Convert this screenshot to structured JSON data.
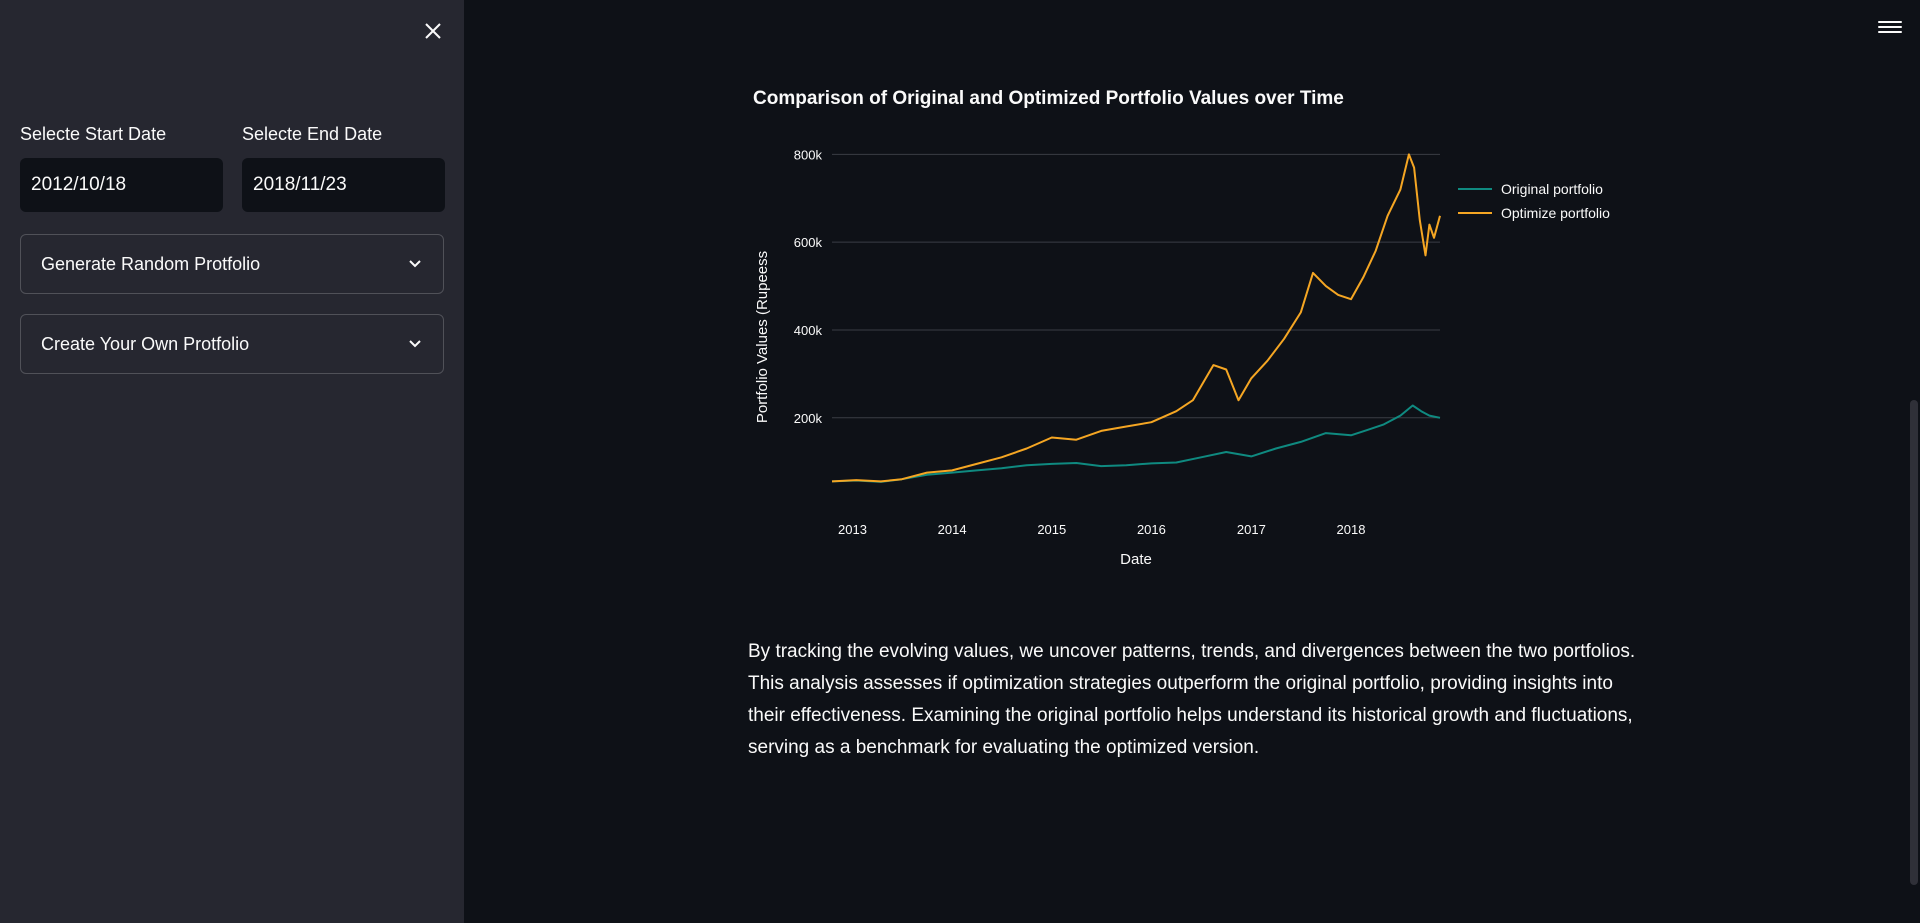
{
  "sidebar": {
    "start_date_label": "Selecte Start Date",
    "start_date_value": "2012/10/18",
    "end_date_label": "Selecte End Date",
    "end_date_value": "2018/11/23",
    "expanders": [
      {
        "label": "Generate Random Protfolio"
      },
      {
        "label": "Create Your Own Protfolio"
      }
    ]
  },
  "main": {
    "chart_title": "Comparison of Original and Optimized Portfolio Values over Time",
    "description": "By tracking the evolving values, we uncover patterns, trends, and divergences between the two portfolios. This analysis assesses if optimization strategies outperform the original portfolio, providing insights into their effectiveness. Examining the original portfolio helps understand its historical growth and fluctuations, serving as a benchmark for evaluating the optimized version."
  },
  "colors": {
    "original": "#0f8a80",
    "optimized": "#f5a623",
    "background": "#0e1117",
    "sidebar": "#262730"
  },
  "chart_data": {
    "type": "line",
    "title": "",
    "xlabel": "Date",
    "ylabel": "Portfolio Values (Rupeess",
    "x_tick_labels": [
      "2013",
      "2014",
      "2015",
      "2016",
      "2017",
      "2018"
    ],
    "y_tick_labels": [
      "200k",
      "400k",
      "600k",
      "800k"
    ],
    "y_ticks": [
      200000,
      400000,
      600000,
      800000
    ],
    "xlim": [
      "2012-10-18",
      "2018-11-23"
    ],
    "ylim": [
      40000,
      810000
    ],
    "grid": "horizontal",
    "legend": "top-right",
    "series": [
      {
        "name": "Original portfolio",
        "x": [
          "2012-10-18",
          "2013-01-15",
          "2013-04-15",
          "2013-07-01",
          "2013-10-01",
          "2014-01-01",
          "2014-04-01",
          "2014-07-01",
          "2014-10-01",
          "2015-01-01",
          "2015-04-01",
          "2015-07-01",
          "2015-10-01",
          "2016-01-01",
          "2016-04-01",
          "2016-07-01",
          "2016-10-01",
          "2017-01-01",
          "2017-04-01",
          "2017-07-01",
          "2017-10-01",
          "2018-01-01",
          "2018-03-01",
          "2018-05-01",
          "2018-07-01",
          "2018-08-15",
          "2018-09-15",
          "2018-10-15",
          "2018-11-23"
        ],
        "values": [
          55000,
          57000,
          54000,
          60000,
          70000,
          75000,
          80000,
          85000,
          92000,
          95000,
          97000,
          90000,
          92000,
          96000,
          98000,
          110000,
          122000,
          112000,
          130000,
          145000,
          165000,
          160000,
          172000,
          185000,
          205000,
          228000,
          215000,
          205000,
          200000
        ]
      },
      {
        "name": "Optimize portfolio",
        "x": [
          "2012-10-18",
          "2013-01-15",
          "2013-04-15",
          "2013-07-01",
          "2013-10-01",
          "2014-01-01",
          "2014-04-01",
          "2014-07-01",
          "2014-10-01",
          "2015-01-01",
          "2015-04-01",
          "2015-07-01",
          "2015-10-01",
          "2016-01-01",
          "2016-04-01",
          "2016-06-01",
          "2016-08-15",
          "2016-10-01",
          "2016-11-15",
          "2017-01-01",
          "2017-03-01",
          "2017-05-01",
          "2017-07-01",
          "2017-08-15",
          "2017-10-01",
          "2017-11-15",
          "2018-01-01",
          "2018-02-15",
          "2018-04-01",
          "2018-05-15",
          "2018-07-01",
          "2018-08-01",
          "2018-08-20",
          "2018-09-10",
          "2018-10-01",
          "2018-10-15",
          "2018-11-01",
          "2018-11-23"
        ],
        "values": [
          55000,
          58000,
          55000,
          60000,
          75000,
          80000,
          95000,
          110000,
          130000,
          155000,
          150000,
          170000,
          180000,
          190000,
          215000,
          240000,
          320000,
          310000,
          240000,
          290000,
          330000,
          380000,
          440000,
          530000,
          500000,
          480000,
          470000,
          520000,
          580000,
          660000,
          720000,
          800000,
          770000,
          650000,
          570000,
          640000,
          610000,
          660000
        ]
      }
    ]
  }
}
